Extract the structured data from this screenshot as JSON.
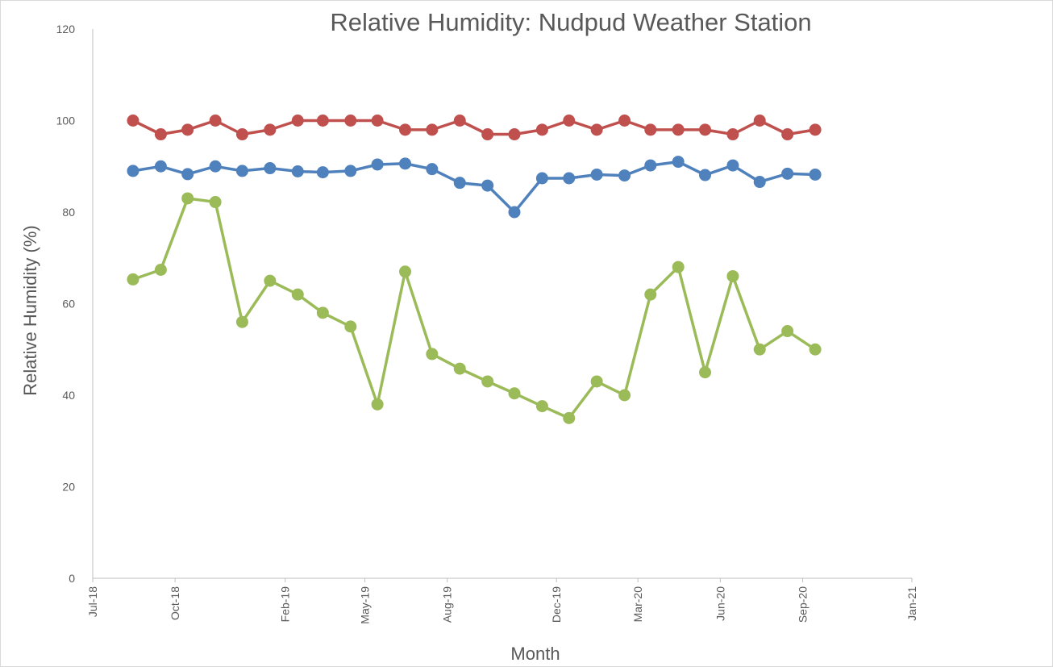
{
  "chart_data": {
    "type": "line",
    "title": "Relative Humidity: Nudpud Weather Station",
    "xlabel": "Month",
    "ylabel": "Relative Humidity (%)",
    "ylim": [
      0,
      120
    ],
    "yticks": [
      0,
      20,
      40,
      60,
      80,
      100,
      120
    ],
    "xlim": [
      "2018-07-01",
      "2021-01-01"
    ],
    "xticks": [
      {
        "date": "2018-07-01",
        "label": "Jul-18"
      },
      {
        "date": "2018-10-01",
        "label": "Oct-18"
      },
      {
        "date": "2019-02-01",
        "label": "Feb-19"
      },
      {
        "date": "2019-05-01",
        "label": "May-19"
      },
      {
        "date": "2019-08-01",
        "label": "Aug-19"
      },
      {
        "date": "2019-12-01",
        "label": "Dec-19"
      },
      {
        "date": "2020-03-01",
        "label": "Mar-20"
      },
      {
        "date": "2020-06-01",
        "label": "Jun-20"
      },
      {
        "date": "2020-09-01",
        "label": "Sep-20"
      },
      {
        "date": "2021-01-01",
        "label": "Jan-21"
      }
    ],
    "grid": false,
    "legend": "none",
    "x": [
      "2018-08-15",
      "2018-09-15",
      "2018-10-15",
      "2018-11-15",
      "2018-12-15",
      "2019-01-15",
      "2019-02-15",
      "2019-03-15",
      "2019-04-15",
      "2019-05-15",
      "2019-06-15",
      "2019-07-15",
      "2019-08-15",
      "2019-09-15",
      "2019-10-15",
      "2019-11-15",
      "2019-12-15",
      "2020-01-15",
      "2020-02-15",
      "2020-03-15",
      "2020-04-15",
      "2020-05-15",
      "2020-06-15",
      "2020-07-15",
      "2020-08-15",
      "2020-09-15"
    ],
    "series": [
      {
        "color": "#c0504d",
        "values": [
          100,
          97,
          98,
          100,
          97,
          98,
          100,
          100,
          100,
          100,
          98,
          98,
          100,
          97,
          97,
          98,
          100,
          98,
          100,
          98,
          98,
          98,
          97,
          100,
          97,
          98
        ]
      },
      {
        "color": "#4f81bd",
        "values": [
          89,
          90,
          88.3,
          90,
          89,
          89.6,
          88.9,
          88.7,
          89,
          90.4,
          90.6,
          89.4,
          86.4,
          85.8,
          80,
          87.4,
          87.4,
          88.2,
          88,
          90.2,
          91,
          88.1,
          90.2,
          86.6,
          88.4,
          88.2
        ]
      },
      {
        "color": "#9bbb59",
        "values": [
          65.3,
          67.4,
          83,
          82.2,
          56,
          65,
          62,
          58,
          55,
          38,
          67,
          49,
          45.8,
          43,
          40.4,
          37.6,
          35,
          43,
          40,
          62,
          68,
          45,
          66,
          50,
          54,
          50
        ]
      }
    ]
  }
}
